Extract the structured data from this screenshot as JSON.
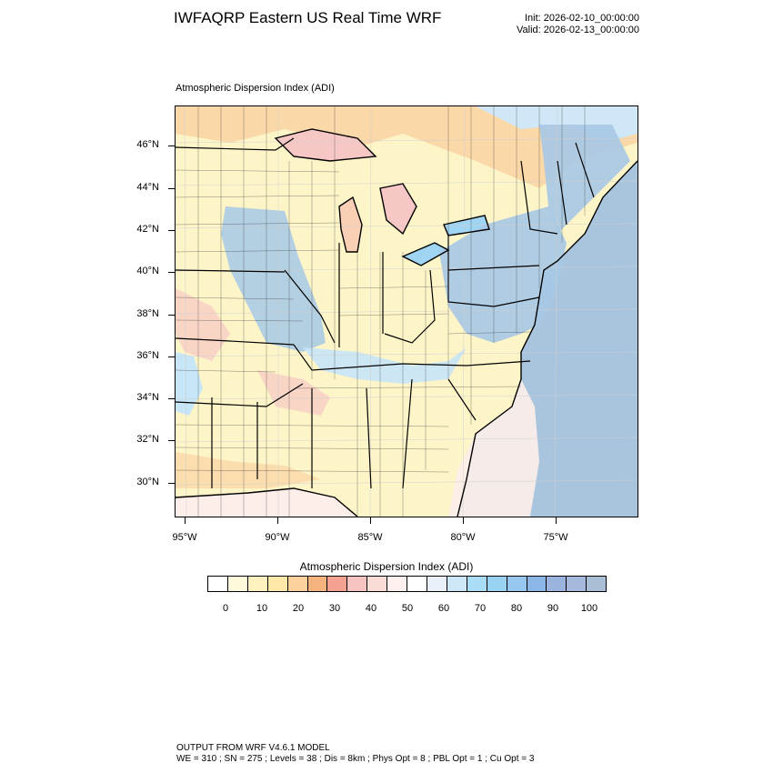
{
  "header": {
    "title": "IWFAQRP Eastern US Real Time WRF",
    "init": "Init: 2026-02-10_00:00:00",
    "valid": "Valid: 2026-02-13_00:00:00"
  },
  "map": {
    "subtitle": "Atmospheric Dispersion Index   (ADI)",
    "lat_labels": [
      "46°N",
      "44°N",
      "42°N",
      "40°N",
      "38°N",
      "36°N",
      "34°N",
      "32°N",
      "30°N"
    ],
    "lon_labels": [
      "95°W",
      "90°W",
      "85°W",
      "80°W",
      "75°W"
    ],
    "colors": {
      "pale_yellow": "#fdf5c8",
      "peach": "#fbd8a8",
      "pink": "#f6c7c4",
      "light_blue": "#c7e6f7",
      "blue": "#a6c8e6",
      "ocean": "#a9c5de",
      "lake": "#9fd5f2",
      "white": "#fdf3f0"
    }
  },
  "legend": {
    "title": "Atmospheric Dispersion Index  (ADI)",
    "labels": [
      "0",
      "10",
      "20",
      "30",
      "40",
      "50",
      "60",
      "70",
      "80",
      "90",
      "100"
    ],
    "colors": [
      "#ffffff",
      "#fffadb",
      "#fff2bf",
      "#ffe8a8",
      "#fbd29e",
      "#f5b47f",
      "#f3a191",
      "#f5c4c0",
      "#fadcd7",
      "#fdf0ee",
      "#ffffff",
      "#e9f0fa",
      "#cde7f8",
      "#a9ddf6",
      "#9ad3f2",
      "#96c7ee",
      "#8cb6e6",
      "#9ab4de",
      "#a4b9dc",
      "#a8bfd6"
    ]
  },
  "footer": {
    "line1": "OUTPUT FROM WRF V4.6.1 MODEL",
    "line2": "WE = 310 ; SN = 275 ; Levels = 38 ; Dis = 8km ; Phys Opt = 8 ; PBL Opt = 1 ; Cu Opt = 3"
  }
}
